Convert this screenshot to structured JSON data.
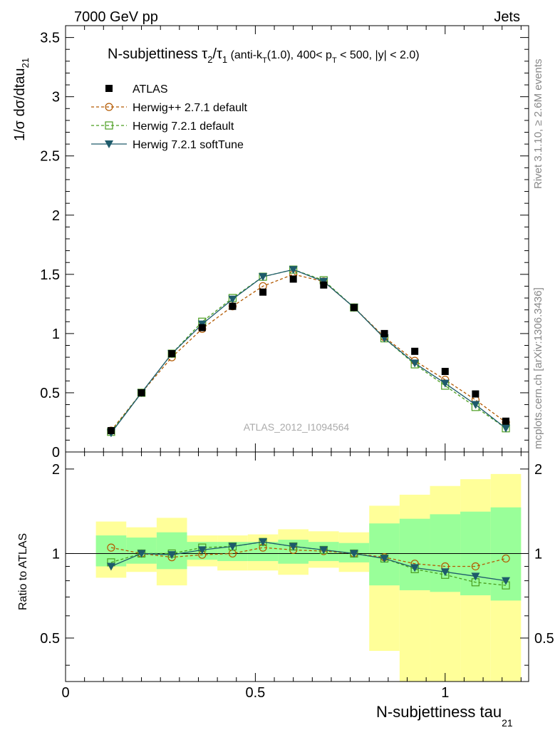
{
  "header": {
    "left": "7000 GeV pp",
    "right": "Jets",
    "rivet": "Rivet 3.1.10, ≥ 2.6M events",
    "mcplots": "mcplots.cern.ch [arXiv:1306.3436]",
    "analysis": "ATLAS_2012_I1094564"
  },
  "title": {
    "main": "N-subjettiness τ",
    "sub1": "2",
    "slash": "/τ",
    "sub2": "1",
    "p1": " (anti-k",
    "p1sub": "T",
    "p2": "(1.0), 400< p",
    "p2sub": "T",
    "p3": " < 500, |y| < 2.0)"
  },
  "colors": {
    "atlas": "#000000",
    "herwigpp": "#b35900",
    "herwig721": "#4a9d1f",
    "softtune": "#1e5b6b",
    "band_yellow": "#ffff99",
    "band_green": "#99ff99"
  },
  "chart_data": [
    {
      "type": "scatter",
      "ylabel": "1/σ dσ/dtau",
      "ylabel_sub": "21",
      "xlim": [
        0,
        1.22
      ],
      "ylim": [
        0,
        3.6
      ],
      "y_ticks": [
        "0",
        "0.5",
        "1",
        "1.5",
        "2",
        "2.5",
        "3",
        "3.5"
      ],
      "x": [
        0.12,
        0.2,
        0.28,
        0.36,
        0.44,
        0.52,
        0.6,
        0.68,
        0.76,
        0.84,
        0.92,
        1.0,
        1.08,
        1.16
      ],
      "legend": "top-left",
      "series": [
        {
          "name": "ATLAS",
          "values": [
            0.18,
            0.5,
            0.83,
            1.05,
            1.23,
            1.35,
            1.46,
            1.41,
            1.22,
            1.0,
            0.85,
            0.68,
            0.49,
            0.26
          ]
        },
        {
          "name": "Herwig++ 2.7.1 default",
          "values": [
            0.18,
            0.5,
            0.8,
            1.04,
            1.23,
            1.4,
            1.5,
            1.44,
            1.22,
            0.97,
            0.77,
            0.61,
            0.44,
            0.25
          ]
        },
        {
          "name": "Herwig 7.2.1 default",
          "values": [
            0.17,
            0.5,
            0.83,
            1.1,
            1.3,
            1.48,
            1.54,
            1.45,
            1.22,
            0.96,
            0.74,
            0.56,
            0.38,
            0.2
          ]
        },
        {
          "name": "Herwig 7.2.1 softTune",
          "values": [
            0.16,
            0.5,
            0.83,
            1.08,
            1.29,
            1.48,
            1.54,
            1.44,
            1.22,
            0.96,
            0.75,
            0.58,
            0.4,
            0.2
          ]
        }
      ]
    },
    {
      "type": "line",
      "ylabel": "Ratio to ATLAS",
      "xlabel": "N-subjettiness tau",
      "xlabel_sub": "21",
      "xlim": [
        0,
        1.22
      ],
      "ylim": [
        0.35,
        2.3
      ],
      "x_ticks": [
        "0",
        "0.5",
        "1"
      ],
      "y_ticks": [
        "0.5",
        "1",
        "2"
      ],
      "bins": [
        [
          0.08,
          0.16
        ],
        [
          0.16,
          0.24
        ],
        [
          0.24,
          0.32
        ],
        [
          0.32,
          0.4
        ],
        [
          0.4,
          0.48
        ],
        [
          0.48,
          0.56
        ],
        [
          0.56,
          0.64
        ],
        [
          0.64,
          0.72
        ],
        [
          0.72,
          0.8
        ],
        [
          0.8,
          0.88
        ],
        [
          0.88,
          0.96
        ],
        [
          0.96,
          1.04
        ],
        [
          1.04,
          1.12
        ],
        [
          1.12,
          1.2
        ]
      ],
      "band_yellow": [
        [
          0.82,
          1.3
        ],
        [
          0.86,
          1.24
        ],
        [
          0.77,
          1.34
        ],
        [
          0.9,
          1.16
        ],
        [
          0.87,
          1.16
        ],
        [
          0.87,
          1.17
        ],
        [
          0.84,
          1.22
        ],
        [
          0.89,
          1.2
        ],
        [
          0.86,
          1.19
        ],
        [
          0.45,
          1.48
        ],
        [
          0.3,
          1.62
        ],
        [
          0.2,
          1.74
        ],
        [
          0.2,
          1.84
        ],
        [
          0.2,
          1.92
        ]
      ],
      "band_green": [
        [
          0.9,
          1.16
        ],
        [
          0.92,
          1.14
        ],
        [
          0.88,
          1.19
        ],
        [
          0.95,
          1.1
        ],
        [
          0.94,
          1.1
        ],
        [
          0.94,
          1.1
        ],
        [
          0.92,
          1.12
        ],
        [
          0.94,
          1.1
        ],
        [
          0.93,
          1.09
        ],
        [
          0.77,
          1.28
        ],
        [
          0.74,
          1.33
        ],
        [
          0.73,
          1.38
        ],
        [
          0.71,
          1.41
        ],
        [
          0.68,
          1.46
        ]
      ],
      "x": [
        0.12,
        0.2,
        0.28,
        0.36,
        0.44,
        0.52,
        0.6,
        0.68,
        0.76,
        0.84,
        0.92,
        1.0,
        1.08,
        1.16
      ],
      "series": [
        {
          "name": "Herwig++ 2.7.1 default",
          "values": [
            1.05,
            1.0,
            0.97,
            0.99,
            1.0,
            1.05,
            1.03,
            1.02,
            1.0,
            0.97,
            0.92,
            0.9,
            0.9,
            0.96
          ]
        },
        {
          "name": "Herwig 7.2.1 default",
          "values": [
            0.93,
            1.0,
            1.0,
            1.05,
            1.06,
            1.1,
            1.06,
            1.03,
            1.0,
            0.96,
            0.88,
            0.84,
            0.79,
            0.77
          ]
        },
        {
          "name": "Herwig 7.2.1 softTune",
          "values": [
            0.9,
            1.0,
            0.99,
            1.03,
            1.06,
            1.1,
            1.06,
            1.03,
            1.0,
            0.96,
            0.89,
            0.86,
            0.83,
            0.8
          ]
        }
      ]
    }
  ]
}
